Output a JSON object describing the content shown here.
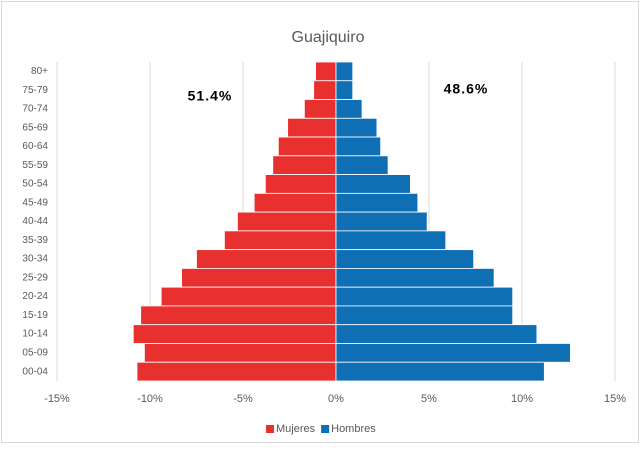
{
  "chart_data": {
    "type": "pyramid",
    "title": "Guajiquiro",
    "categories": [
      "80+",
      "75-79",
      "70-74",
      "65-69",
      "60-64",
      "55-59",
      "50-54",
      "45-49",
      "40-44",
      "35-39",
      "30-34",
      "25-29",
      "20-24",
      "15-19",
      "10-14",
      "05-09",
      "00-04"
    ],
    "series": [
      {
        "name": "Mujeres",
        "color": "#e8312f",
        "values": [
          -1.1,
          -1.2,
          -1.7,
          -2.6,
          -3.1,
          -3.4,
          -3.8,
          -4.4,
          -5.3,
          -6.0,
          -7.5,
          -8.3,
          -9.4,
          -10.5,
          -10.9,
          -10.3,
          -10.7
        ]
      },
      {
        "name": "Hombres",
        "color": "#0f6fb5",
        "values": [
          0.9,
          0.9,
          1.4,
          2.2,
          2.4,
          2.8,
          4.0,
          4.4,
          4.9,
          5.9,
          7.4,
          8.5,
          9.5,
          9.5,
          10.8,
          12.6,
          11.2
        ]
      }
    ],
    "annotations": [
      "51.4%",
      "48.6%"
    ],
    "xlim": [
      -15,
      15
    ],
    "xticks": [
      {
        "value": -15,
        "label": "-15%"
      },
      {
        "value": -10,
        "label": "-10%"
      },
      {
        "value": -5,
        "label": "-5%"
      },
      {
        "value": 0,
        "label": "0%"
      },
      {
        "value": 5,
        "label": "5%"
      },
      {
        "value": 10,
        "label": "10%"
      },
      {
        "value": 15,
        "label": "15%"
      }
    ],
    "grid": true
  }
}
